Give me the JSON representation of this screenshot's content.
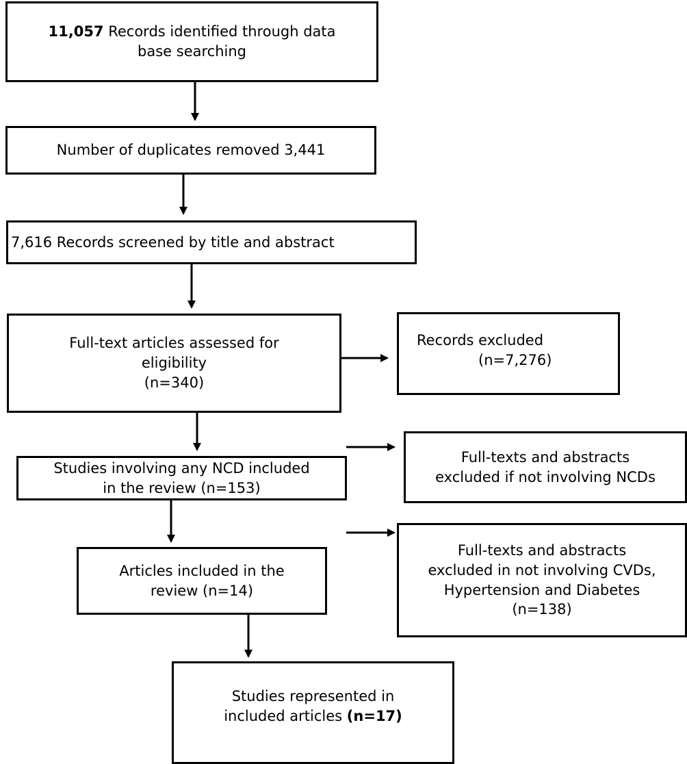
{
  "boxes": {
    "identified": {
      "count": "11,057",
      "text": " Records identified through data\nbase searching"
    },
    "duplicates": {
      "text": "Number of duplicates removed 3,441"
    },
    "screened": {
      "text": "7,616 Records screened by title and abstract"
    },
    "fulltext": {
      "text": "Full-text articles assessed for\neligibility\n(n=340)"
    },
    "excluded_records": {
      "line1": "Records excluded",
      "line2": "(n=7,276)"
    },
    "ncd_studies": {
      "text": "Studies involving any NCD included\nin the review (n=153)"
    },
    "excluded_ncd": {
      "text": "Full-texts and abstracts\nexcluded if not involving NCDs"
    },
    "included_articles": {
      "text": "Articles included in the\nreview (n=14)"
    },
    "excluded_cvd": {
      "text": "Full-texts and abstracts\nexcluded in not involving CVDs,\nHypertension and Diabetes\n(n=138)"
    },
    "represented": {
      "text": "Studies represented in\nincluded articles ",
      "count": "(n=17)"
    }
  }
}
